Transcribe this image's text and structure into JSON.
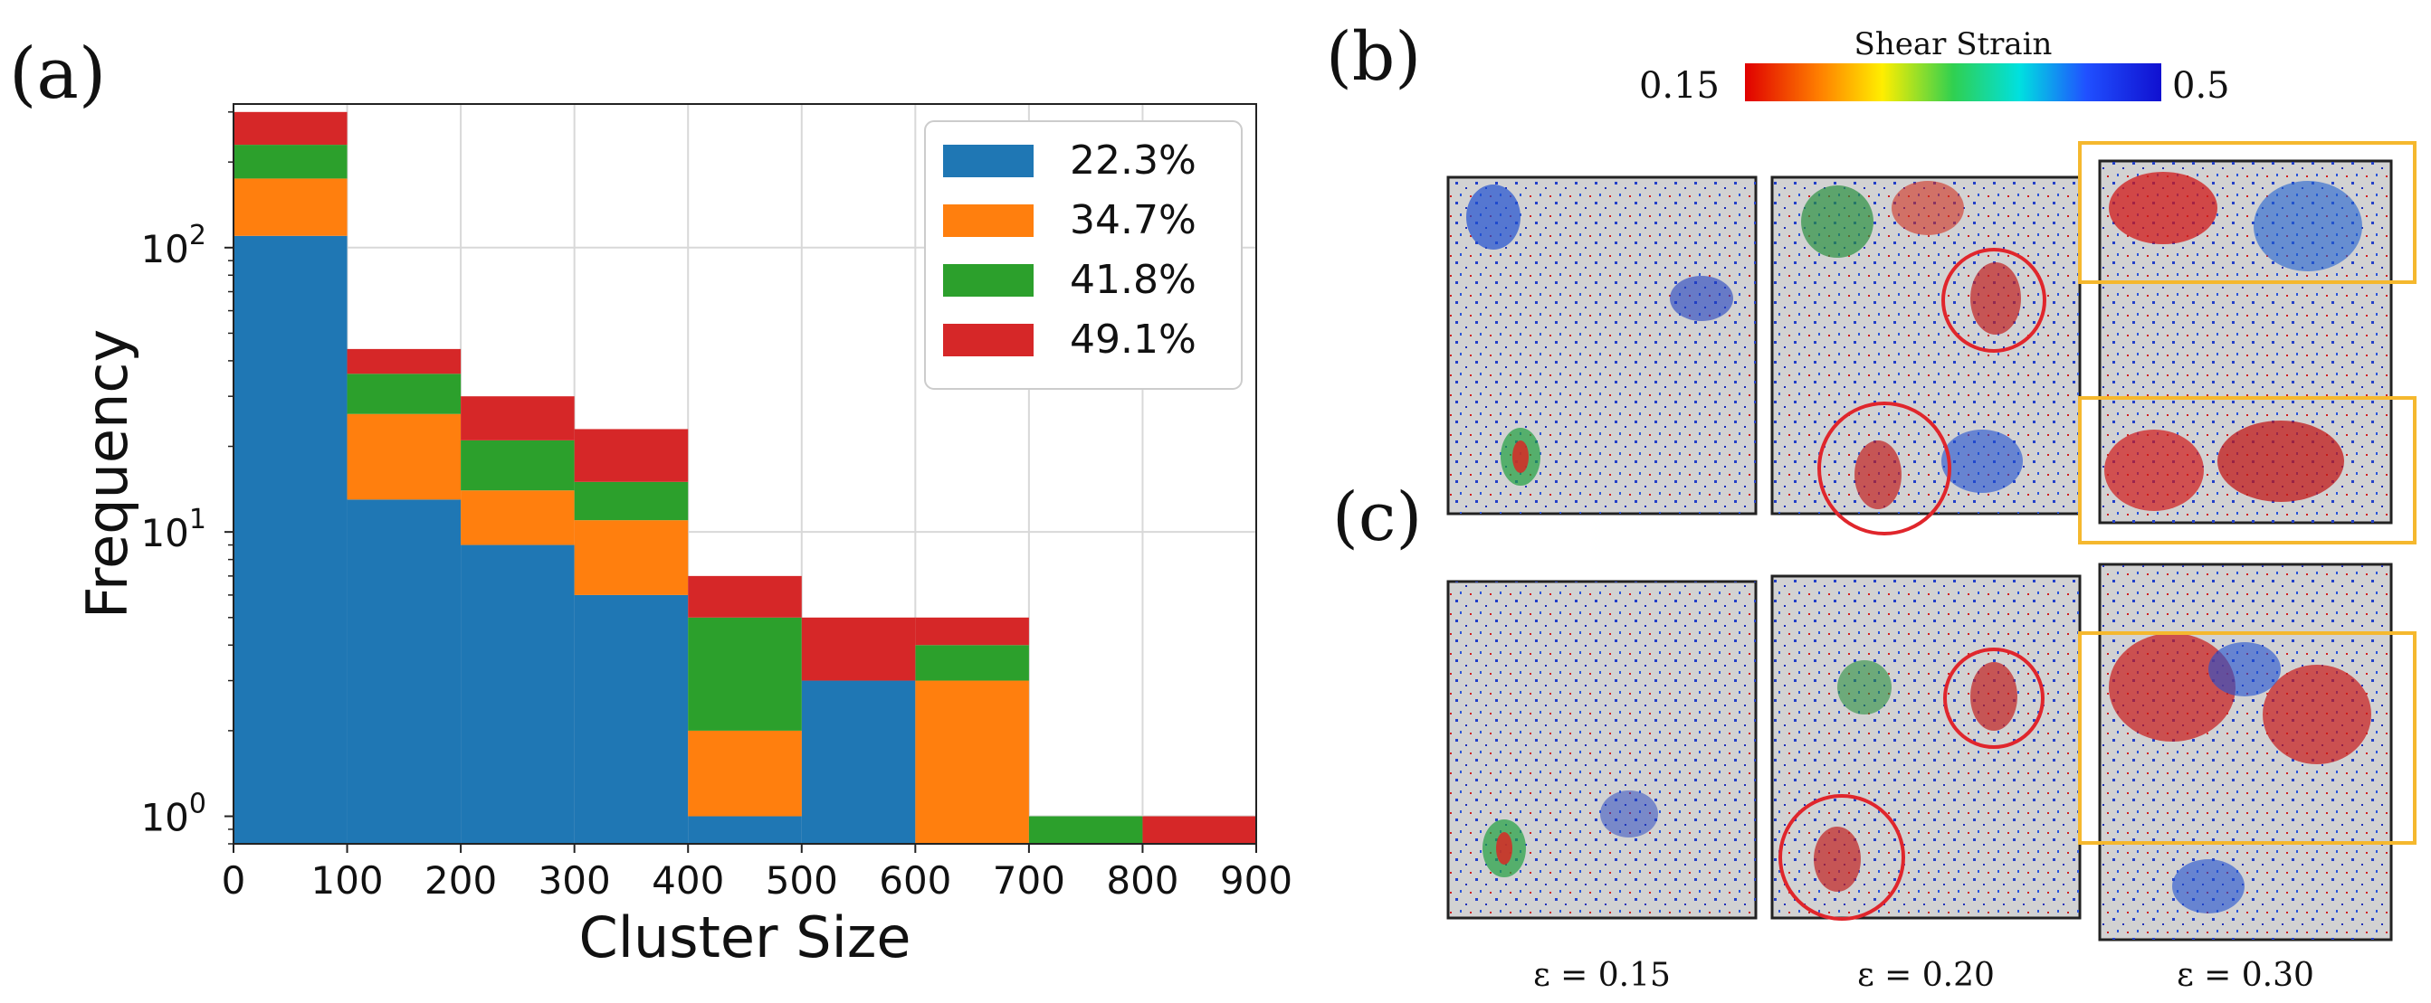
{
  "panel_labels": {
    "a": "(a)",
    "b": "(b)",
    "c": "(c)"
  },
  "chart_data": {
    "type": "bar",
    "stacked": true,
    "scale": "log",
    "xlabel": "Cluster Size",
    "ylabel": "Frequency",
    "xlim": [
      0,
      900
    ],
    "ylim": [
      0.8,
      320
    ],
    "bin_edges": [
      0,
      100,
      200,
      300,
      400,
      500,
      600,
      700,
      800,
      900
    ],
    "xticks": [
      "0",
      "100",
      "200",
      "300",
      "400",
      "500",
      "600",
      "700",
      "800",
      "900"
    ],
    "yticks": [
      {
        "value": 1,
        "base": "10",
        "exp": "0"
      },
      {
        "value": 10,
        "base": "10",
        "exp": "1"
      },
      {
        "value": 100,
        "base": "10",
        "exp": "2"
      }
    ],
    "grid": true,
    "legend_position": "top-right",
    "series": [
      {
        "name": "22.3%",
        "color": "#1f77b4",
        "values": [
          110,
          13,
          9,
          6,
          1,
          3,
          0,
          0,
          0
        ]
      },
      {
        "name": "34.7%",
        "color": "#ff7f0e",
        "values": [
          65,
          13,
          5,
          5,
          1,
          0,
          3,
          0,
          0
        ]
      },
      {
        "name": "41.8%",
        "color": "#2ca02c",
        "values": [
          55,
          10,
          7,
          4,
          3,
          0,
          1,
          1,
          0
        ]
      },
      {
        "name": "49.1%",
        "color": "#d62728",
        "values": [
          70,
          8,
          9,
          8,
          2,
          2,
          1,
          0,
          1
        ]
      }
    ]
  },
  "colorbar": {
    "title": "Shear Strain",
    "min_label": "0.15",
    "max_label": "0.5"
  },
  "snapshots": {
    "columns": [
      {
        "label": "ε = 0.15"
      },
      {
        "label": "ε = 0.20"
      },
      {
        "label": "ε = 0.30"
      }
    ],
    "rows": [
      "(b)",
      "(c)"
    ]
  },
  "colors": {
    "red_circle": "#e0262c",
    "orange_box": "#f5b82e",
    "panel_bg": "#d2d2d2"
  }
}
